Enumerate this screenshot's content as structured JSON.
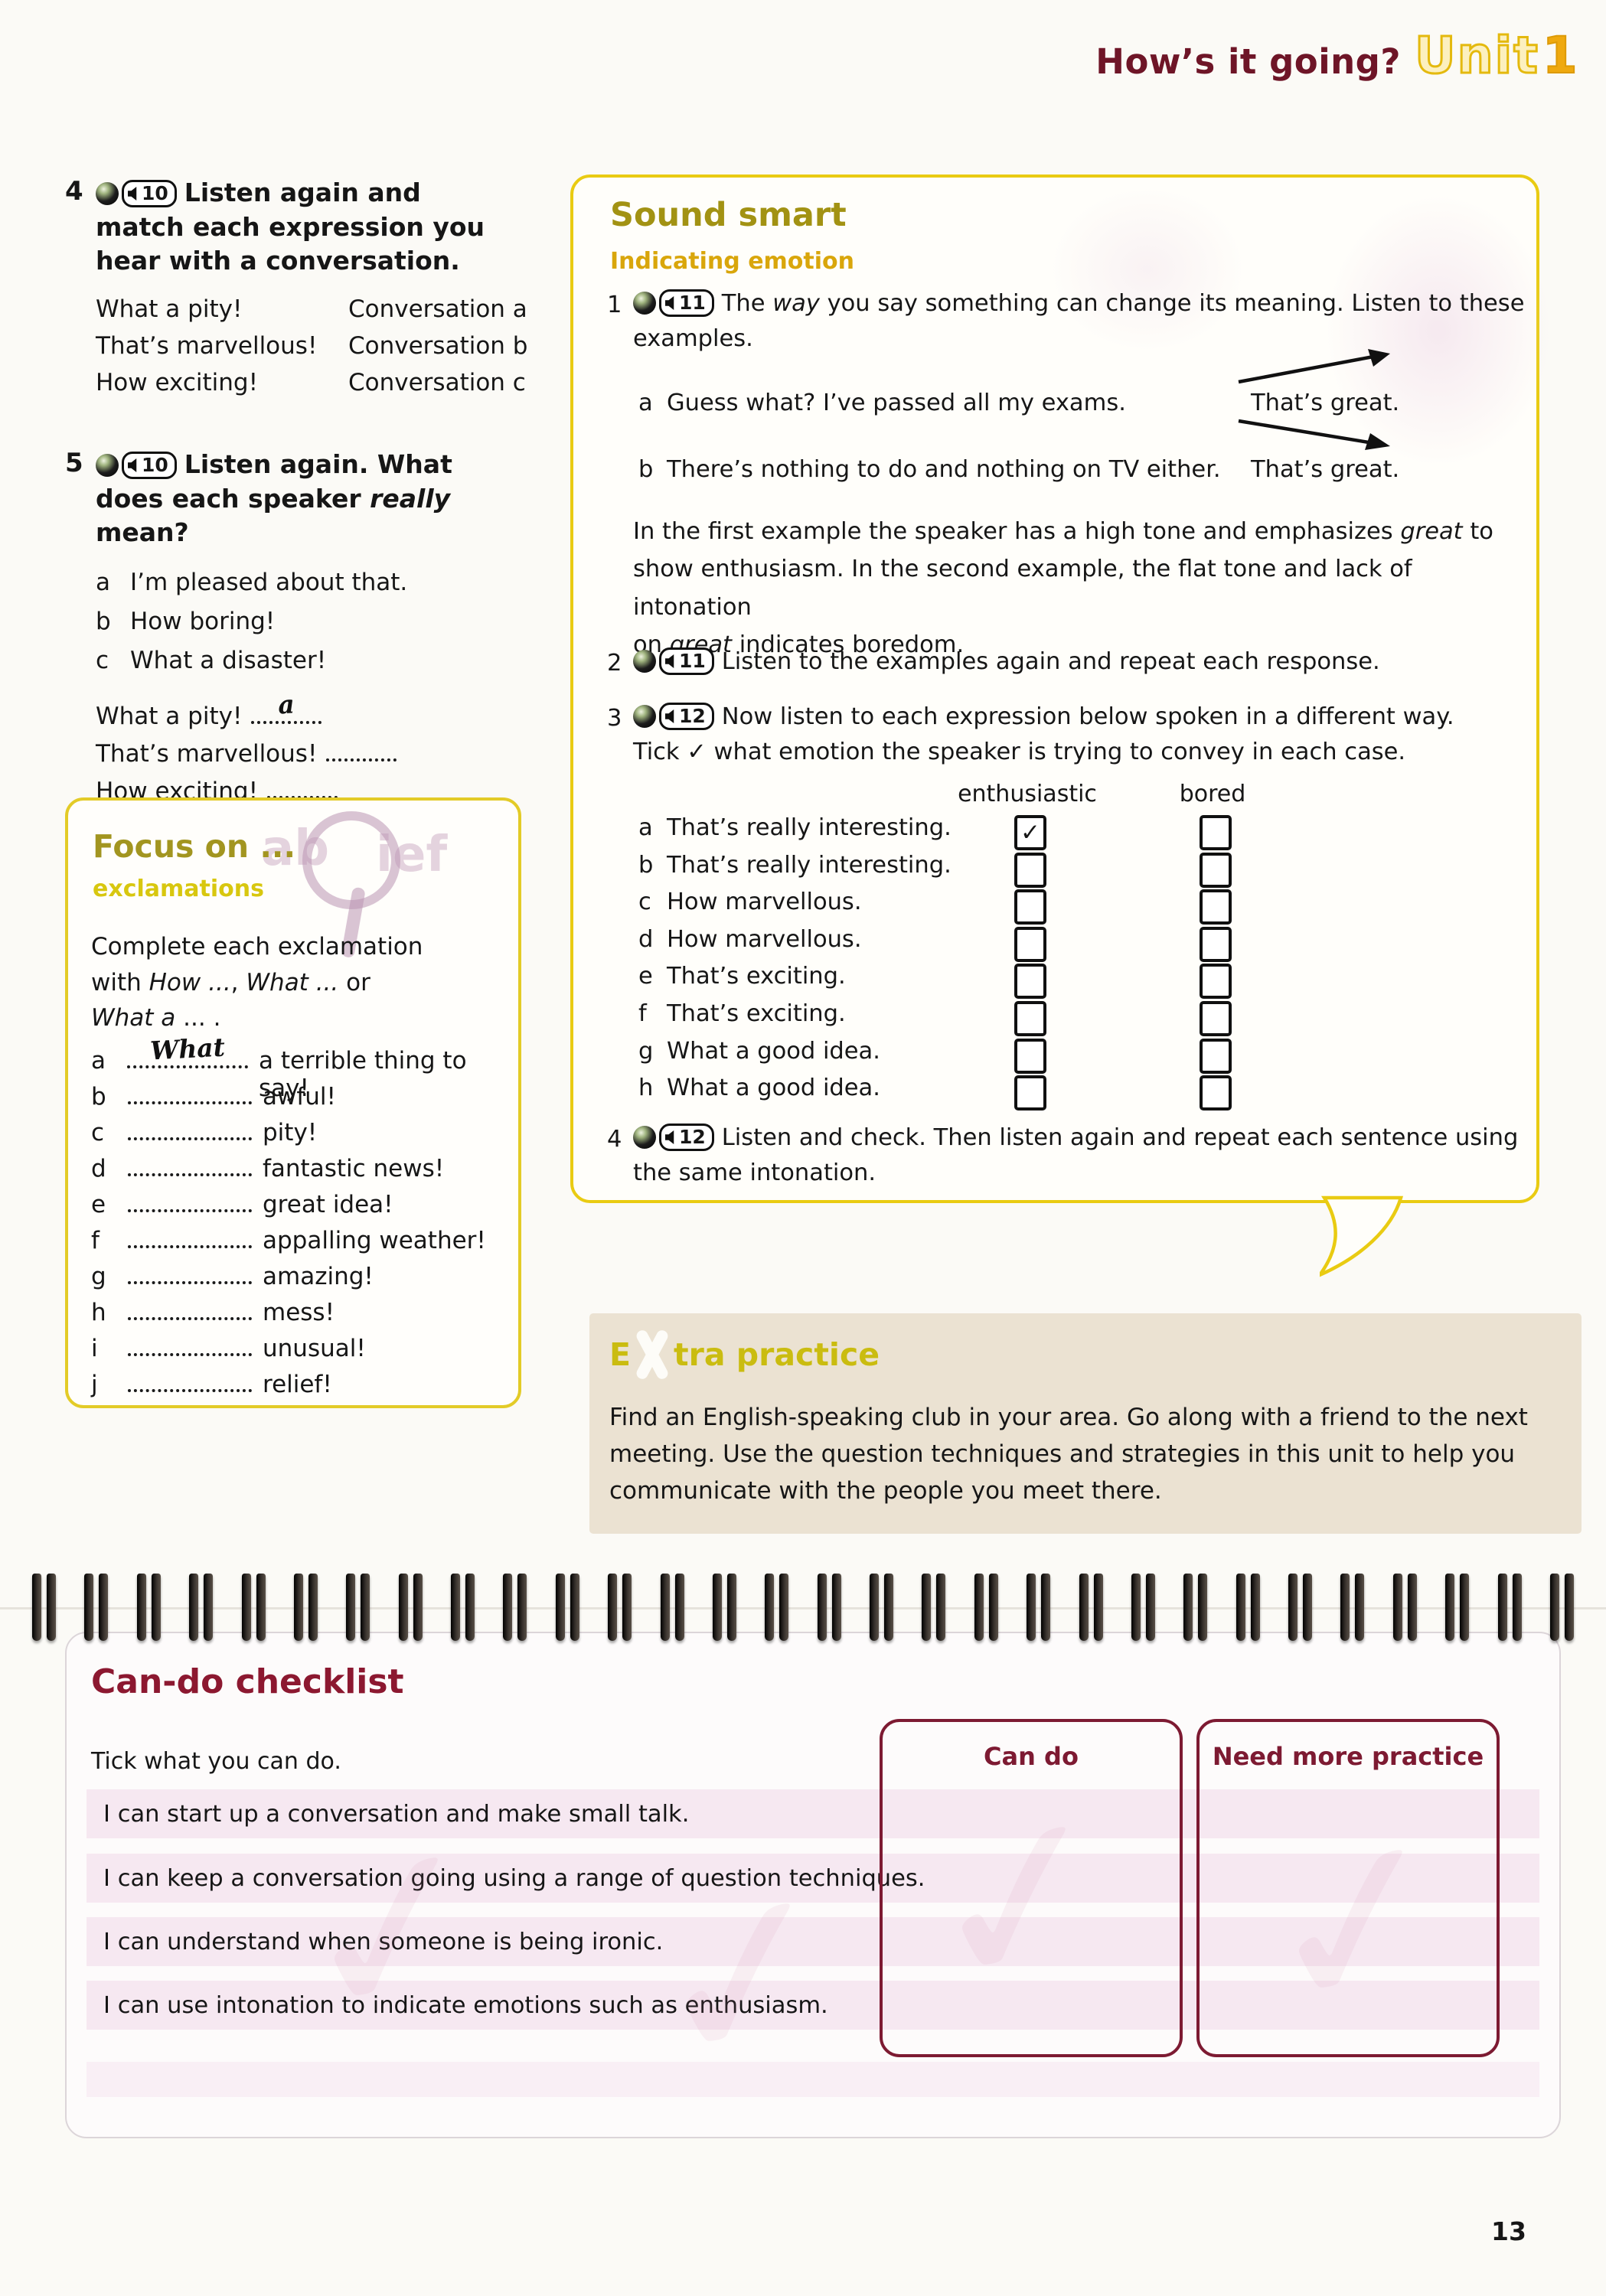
{
  "page": {
    "number": "13"
  },
  "header": {
    "title": "How’s it going?",
    "unit_word": "Unit",
    "unit_number": "1"
  },
  "exercise4": {
    "number": "4",
    "cd": "10",
    "title": "Listen again and match each expression you hear with a conversation.",
    "pairs": [
      {
        "left": "What a pity!",
        "right": "Conversation a"
      },
      {
        "left": "That’s marvellous!",
        "right": "Conversation b"
      },
      {
        "left": "How exciting!",
        "right": "Conversation c"
      }
    ]
  },
  "exercise5": {
    "number": "5",
    "cd": "10",
    "title_pre": "Listen again. What does each speaker ",
    "title_italic": "really",
    "title_post": " mean?",
    "options": [
      {
        "letter": "a",
        "text": "I’m pleased about that."
      },
      {
        "letter": "b",
        "text": "How boring!"
      },
      {
        "letter": "c",
        "text": "What a disaster!"
      }
    ],
    "answers": [
      {
        "prompt": "What a pity!",
        "answer": "a"
      },
      {
        "prompt": "That’s marvellous!",
        "answer": ""
      },
      {
        "prompt": "How exciting!",
        "answer": ""
      }
    ]
  },
  "focus_box": {
    "title": "Focus on ...",
    "subtitle": "exclamations",
    "watermark_left": "ab",
    "watermark_right": "ief",
    "intro_line1": "Complete each exclamation",
    "intro_line2_pre": "with ",
    "intro_line2_it1": "How ...",
    "intro_line2_mid": ", ",
    "intro_line2_it2": "What ...",
    "intro_line2_post": " or",
    "intro_line3_it": "What a",
    "intro_line3_post": " ... .",
    "items": [
      {
        "letter": "a",
        "answer": "What",
        "text": "a terrible thing to say!"
      },
      {
        "letter": "b",
        "answer": "",
        "text": "awful!"
      },
      {
        "letter": "c",
        "answer": "",
        "text": "pity!"
      },
      {
        "letter": "d",
        "answer": "",
        "text": "fantastic news!"
      },
      {
        "letter": "e",
        "answer": "",
        "text": "great idea!"
      },
      {
        "letter": "f",
        "answer": "",
        "text": "appalling weather!"
      },
      {
        "letter": "g",
        "answer": "",
        "text": "amazing!"
      },
      {
        "letter": "h",
        "answer": "",
        "text": "mess!"
      },
      {
        "letter": "i",
        "answer": "",
        "text": "unusual!"
      },
      {
        "letter": "j",
        "answer": "",
        "text": "relief!"
      }
    ]
  },
  "sound_smart": {
    "title": "Sound smart",
    "subtitle": "Indicating emotion",
    "item1": {
      "number": "1",
      "cd": "11",
      "pre": "The ",
      "italic": "way",
      "post": " you say something can change its meaning. Listen to these examples."
    },
    "examples": [
      {
        "letter": "a",
        "text": "Guess what? I’ve passed all my exams.",
        "response": "That’s great.",
        "intonation": "rising"
      },
      {
        "letter": "b",
        "text": "There’s nothing to do and nothing on TV either.",
        "response": "That’s great.",
        "intonation": "falling"
      }
    ],
    "explanation": {
      "l1a": "In the first example the speaker has a high tone and emphasizes ",
      "l1it": "great",
      "l1b": " to",
      "l2": "show enthusiasm. In the second example, the flat tone and lack of intonation",
      "l3a": "on ",
      "l3it": "great",
      "l3b": " indicates boredom."
    },
    "item2": {
      "number": "2",
      "cd": "11",
      "text": "Listen to the examples again and repeat each response."
    },
    "item3": {
      "number": "3",
      "cd": "12",
      "line1": "Now listen to each expression below spoken in a different way.",
      "line2": "Tick ✓ what emotion the speaker is trying to convey in each case."
    },
    "table": {
      "col1": "enthusiastic",
      "col2": "bored",
      "rows": [
        {
          "letter": "a",
          "text": "That’s really interesting.",
          "enthusiastic_mark": "✓",
          "bored_mark": ""
        },
        {
          "letter": "b",
          "text": "That’s really interesting.",
          "enthusiastic_mark": "",
          "bored_mark": ""
        },
        {
          "letter": "c",
          "text": "How marvellous.",
          "enthusiastic_mark": "",
          "bored_mark": ""
        },
        {
          "letter": "d",
          "text": "How marvellous.",
          "enthusiastic_mark": "",
          "bored_mark": ""
        },
        {
          "letter": "e",
          "text": "That’s exciting.",
          "enthusiastic_mark": "",
          "bored_mark": ""
        },
        {
          "letter": "f",
          "text": "That’s exciting.",
          "enthusiastic_mark": "",
          "bored_mark": ""
        },
        {
          "letter": "g",
          "text": "What a good idea.",
          "enthusiastic_mark": "",
          "bored_mark": ""
        },
        {
          "letter": "h",
          "text": "What a good idea.",
          "enthusiastic_mark": "",
          "bored_mark": ""
        }
      ]
    },
    "item4": {
      "number": "4",
      "cd": "12",
      "line1": "Listen and check. Then listen again and repeat each sentence using",
      "line2": "the same intonation."
    }
  },
  "extra_practice": {
    "title_e": "E",
    "title_rest": "tra practice",
    "line1": "Find an English-speaking club in your area. Go along with a friend to the next",
    "line2": "meeting. Use the question techniques and strategies in this unit to help you",
    "line3": "communicate with the people you meet there."
  },
  "checklist": {
    "title": "Can-do checklist",
    "instruction": "Tick what you can do.",
    "items": [
      "I can start up a conversation and make small talk.",
      "I can keep a conversation going using a range of question techniques.",
      "I can understand when someone is being ironic.",
      "I can use intonation to indicate emotions such as enthusiasm."
    ],
    "can_do_label": "Can do",
    "need_practice_label": "Need more practice"
  },
  "colors": {
    "maroon": "#7d1a32",
    "yellow_border": "#e9cb12",
    "olive_title": "#a29213",
    "gold_subtitle": "#d9a60b",
    "beige_panel": "#ebe2d2",
    "pink_stripe": "#f6e8f1"
  }
}
